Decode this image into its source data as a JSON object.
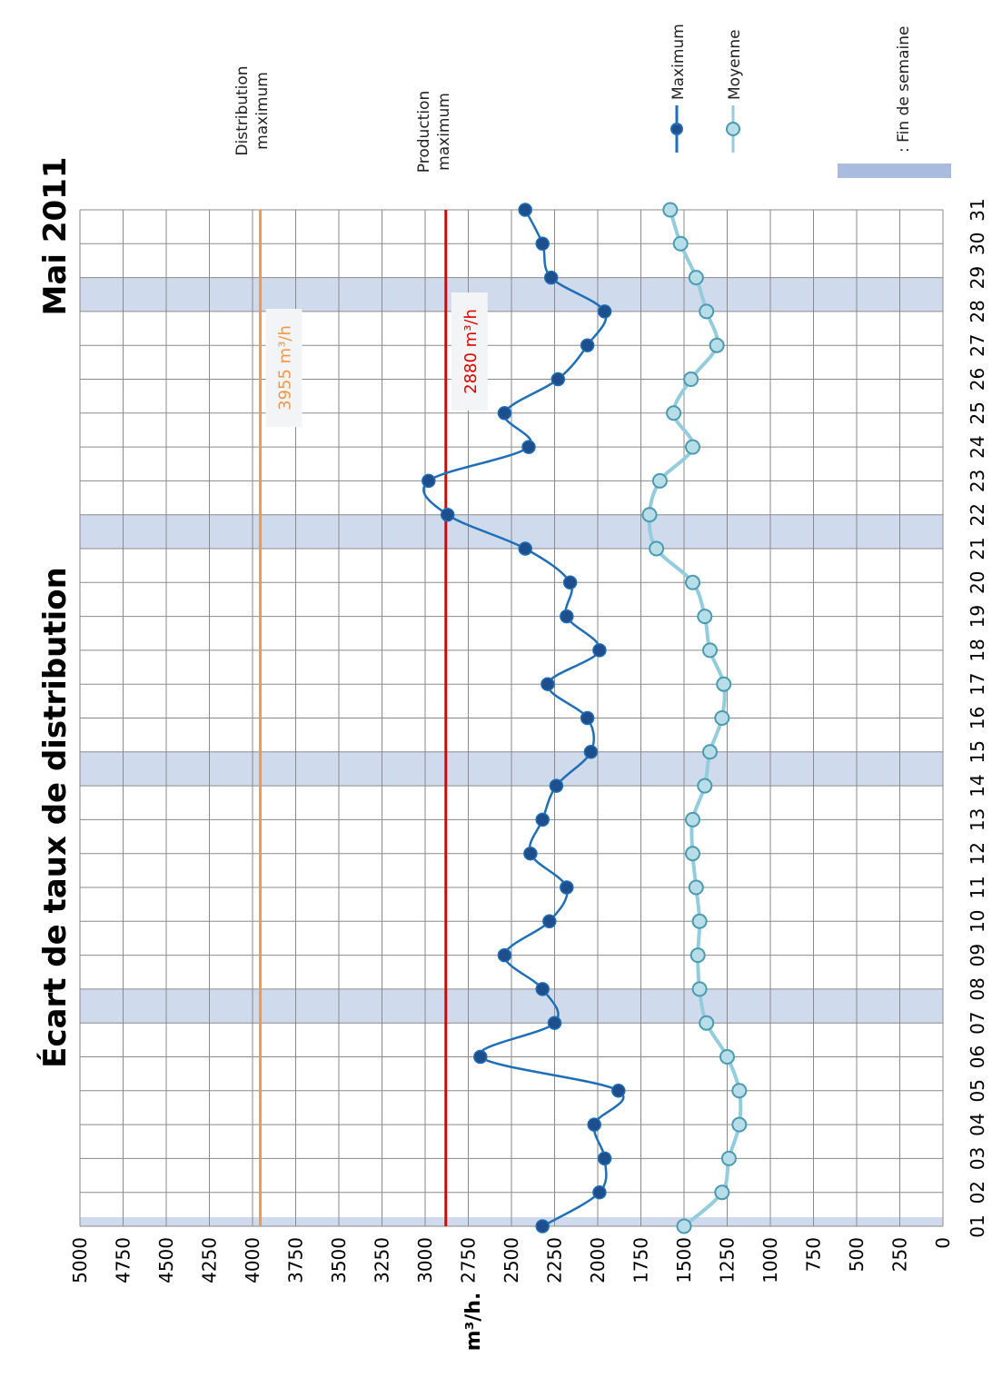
{
  "chart_data": {
    "type": "line",
    "title": "Écart de taux de distribution",
    "subtitle": "Mai 2011",
    "ylabel": "m³/h.",
    "ylim": [
      0,
      5000
    ],
    "y_ticks": [
      "5000",
      "4750",
      "4500",
      "4250",
      "4000",
      "3750",
      "3500",
      "3250",
      "3000",
      "2750",
      "2500",
      "2250",
      "2000",
      "1750",
      "1500",
      "1250",
      "1000",
      "750",
      "500",
      "250",
      "0"
    ],
    "categories": [
      "01",
      "02",
      "03",
      "04",
      "05",
      "06",
      "07",
      "08",
      "09",
      "10",
      "11",
      "12",
      "13",
      "14",
      "15",
      "16",
      "17",
      "18",
      "19",
      "20",
      "21",
      "22",
      "23",
      "24",
      "25",
      "26",
      "27",
      "28",
      "29",
      "30",
      "31"
    ],
    "series": [
      {
        "name": "Maximum",
        "color": "#1f6fb8",
        "values": [
          2320,
          1990,
          1960,
          2020,
          1880,
          2680,
          2250,
          2320,
          2540,
          2280,
          2180,
          2390,
          2320,
          2240,
          2040,
          2060,
          2290,
          1990,
          2180,
          2160,
          2420,
          2870,
          2980,
          2400,
          2540,
          2230,
          2060,
          1960,
          2270,
          2320,
          2420
        ]
      },
      {
        "name": "Moyenne",
        "color": "#93cddd",
        "values": [
          1500,
          1280,
          1240,
          1180,
          1180,
          1250,
          1370,
          1410,
          1420,
          1410,
          1430,
          1450,
          1450,
          1380,
          1350,
          1280,
          1270,
          1350,
          1380,
          1450,
          1660,
          1700,
          1640,
          1450,
          1560,
          1460,
          1310,
          1370,
          1430,
          1520,
          1580
        ]
      }
    ],
    "reference_lines": [
      {
        "name": "Distribution maximum",
        "value": 3955,
        "label": "3955 m³/h",
        "color": "#f79646"
      },
      {
        "name": "Production maximum",
        "value": 2880,
        "label": "2880 m³/h",
        "color": "#e00000"
      }
    ],
    "weekend_bands": [
      [
        "01",
        "01"
      ],
      [
        "07",
        "08"
      ],
      [
        "14",
        "15"
      ],
      [
        "21",
        "22"
      ],
      [
        "28",
        "29"
      ]
    ],
    "legend": {
      "items": [
        "Maximum",
        "Moyenne"
      ],
      "weekend_label": ": Fin de semaine",
      "weekend_color": "#a9bcdf",
      "placement": "right"
    },
    "grid": true,
    "orientation": "rotated-90-clockwise"
  },
  "ref_labels": {
    "distribution": [
      "Distribution",
      "maximum"
    ],
    "production": [
      "Production",
      "maximum"
    ]
  }
}
